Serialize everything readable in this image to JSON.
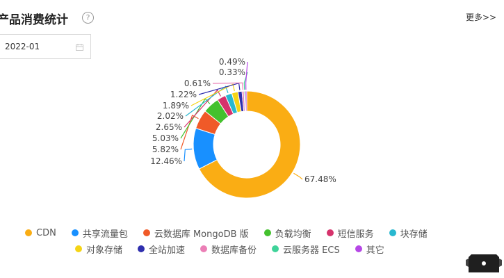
{
  "header": {
    "title": "产品消费统计",
    "help_icon": "question-circle-icon",
    "more_label": "更多>>"
  },
  "date_picker": {
    "value": "2022-01",
    "icon": "calendar-icon"
  },
  "chart_data": {
    "type": "pie",
    "donut": true,
    "slices": [
      {
        "name": "CDN",
        "value": 67.48,
        "label": "67.48%",
        "color": "#FAAD14"
      },
      {
        "name": "共享流量包",
        "value": 12.46,
        "label": "12.46%",
        "color": "#1890FF"
      },
      {
        "name": "云数据库 MongoDB 版",
        "value": 5.82,
        "label": "5.82%",
        "color": "#F05A28"
      },
      {
        "name": "负载均衡",
        "value": 5.03,
        "label": "5.03%",
        "color": "#44C12E"
      },
      {
        "name": "短信服务",
        "value": 2.65,
        "label": "2.65%",
        "color": "#D6336C"
      },
      {
        "name": "块存储",
        "value": 2.02,
        "label": "2.02%",
        "color": "#28B8D0"
      },
      {
        "name": "对象存储",
        "value": 1.89,
        "label": "1.89%",
        "color": "#F5D415"
      },
      {
        "name": "全站加速",
        "value": 1.22,
        "label": "1.22%",
        "color": "#2F2FAE"
      },
      {
        "name": "数据库备份",
        "value": 0.61,
        "label": "0.61%",
        "color": "#EB7FB6"
      },
      {
        "name": "云服务器 ECS",
        "value": 0.33,
        "label": "0.33%",
        "color": "#3FD39A"
      },
      {
        "name": "其它",
        "value": 0.49,
        "label": "0.49%",
        "color": "#B647E6"
      }
    ],
    "legend_position": "bottom"
  },
  "legend": {
    "row1": [
      {
        "label": "CDN",
        "color": "#FAAD14"
      },
      {
        "label": "共享流量包",
        "color": "#1890FF"
      },
      {
        "label": "云数据库 MongoDB 版",
        "color": "#F05A28"
      },
      {
        "label": "负载均衡",
        "color": "#44C12E"
      },
      {
        "label": "短信服务",
        "color": "#D6336C"
      },
      {
        "label": "块存储",
        "color": "#28B8D0"
      }
    ],
    "row2": [
      {
        "label": "对象存储",
        "color": "#F5D415"
      },
      {
        "label": "全站加速",
        "color": "#2F2FAE"
      },
      {
        "label": "数据库备份",
        "color": "#EB7FB6"
      },
      {
        "label": "云服务器 ECS",
        "color": "#3FD39A"
      },
      {
        "label": "其它",
        "color": "#B647E6"
      }
    ]
  },
  "widget": {
    "icon": "floating-assistant-icon"
  }
}
